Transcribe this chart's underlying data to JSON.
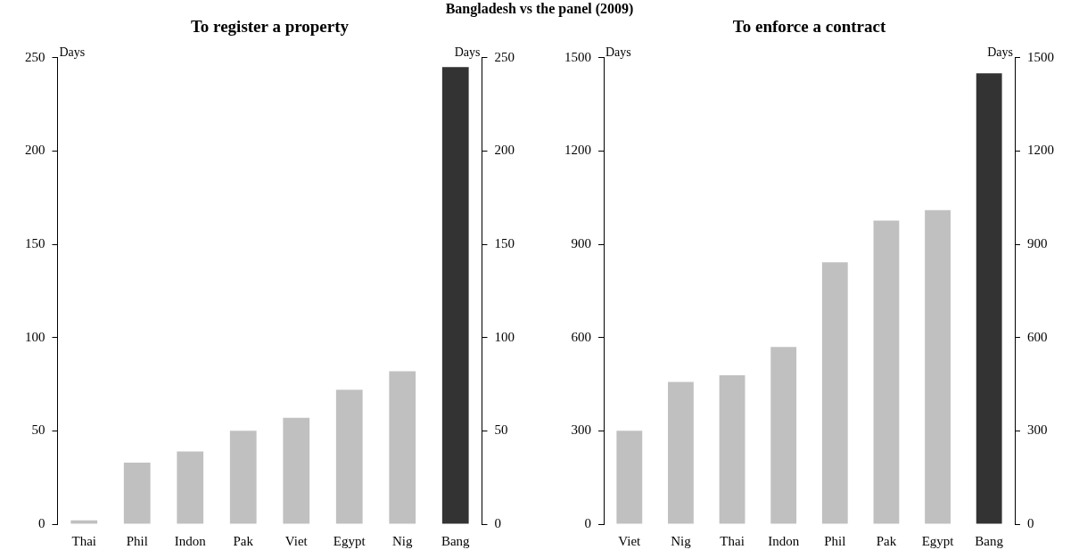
{
  "chart_data": [
    {
      "type": "bar",
      "title": "To register a property",
      "annotations": [
        "Bangladesh vs the panel (2009)"
      ],
      "ylabel": "Days",
      "y2label": "Days",
      "categories": [
        "Thai",
        "Phil",
        "Indon",
        "Pak",
        "Viet",
        "Egypt",
        "Nig",
        "Bang"
      ],
      "values": [
        2,
        33,
        39,
        50,
        57,
        72,
        82,
        245
      ],
      "colors": [
        "#c0c0c0",
        "#c0c0c0",
        "#c0c0c0",
        "#c0c0c0",
        "#c0c0c0",
        "#c0c0c0",
        "#c0c0c0",
        "#333333"
      ],
      "ylim": [
        0,
        250
      ],
      "yticks": [
        0,
        50,
        100,
        150,
        200,
        250
      ],
      "y2lim": [
        0,
        250
      ],
      "y2ticks": [
        0,
        50,
        100,
        150,
        200,
        250
      ],
      "grid": false,
      "legend": false
    },
    {
      "type": "bar",
      "title": "To enforce a contract",
      "ylabel": "Days",
      "y2label": "Days",
      "categories": [
        "Viet",
        "Nig",
        "Thai",
        "Indon",
        "Phil",
        "Pak",
        "Egypt",
        "Bang"
      ],
      "values": [
        300,
        457,
        479,
        570,
        842,
        976,
        1010,
        1450
      ],
      "colors": [
        "#c0c0c0",
        "#c0c0c0",
        "#c0c0c0",
        "#c0c0c0",
        "#c0c0c0",
        "#c0c0c0",
        "#c0c0c0",
        "#333333"
      ],
      "ylim": [
        0,
        1500
      ],
      "yticks": [
        0,
        300,
        600,
        900,
        1200,
        1500
      ],
      "y2lim": [
        0,
        1500
      ],
      "y2ticks": [
        0,
        300,
        600,
        900,
        1200,
        1500
      ],
      "grid": false,
      "legend": false
    }
  ]
}
